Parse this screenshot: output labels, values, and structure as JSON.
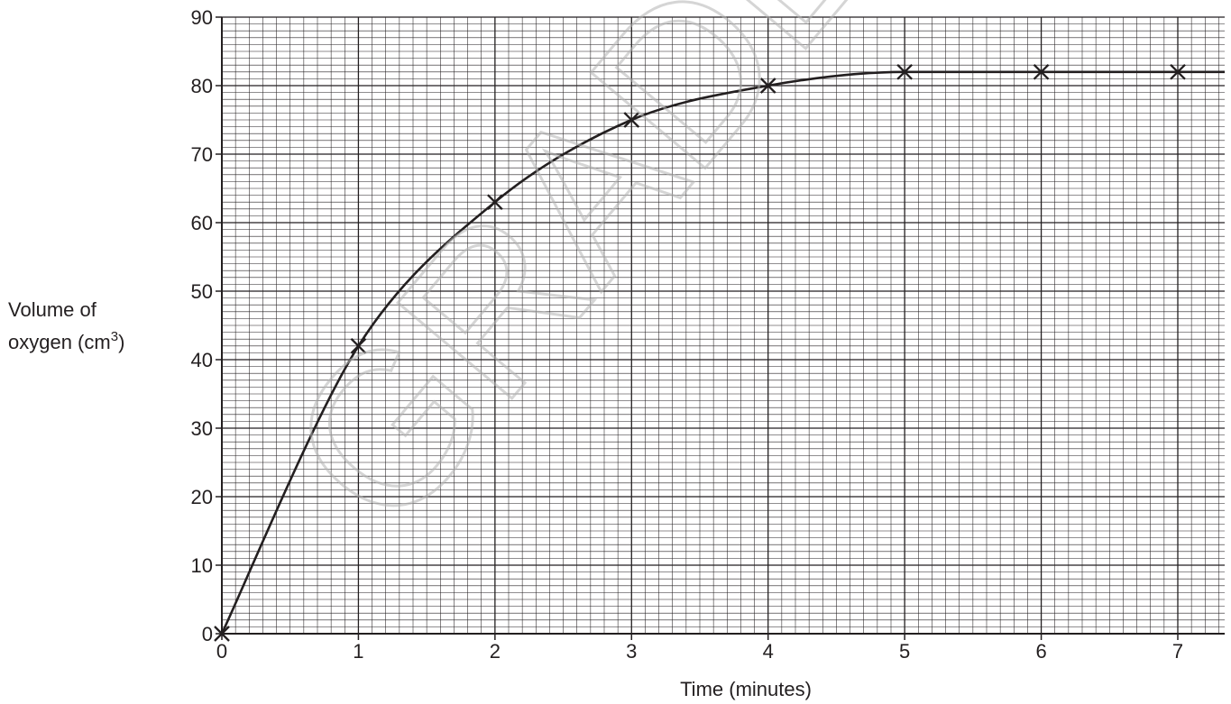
{
  "chart_data": {
    "type": "line",
    "x": [
      0,
      1,
      2,
      3,
      4,
      5,
      6,
      7
    ],
    "series": [
      {
        "values": [
          0,
          42,
          63,
          75,
          80,
          82,
          82,
          82
        ]
      }
    ],
    "curve_after_last_point": 82,
    "xlabel": "Time (minutes)",
    "ylabel_line1": "Volume of",
    "ylabel_line2": "oxygen (cm",
    "ylabel_superscript": "3",
    "ylabel_line2_end": ")",
    "xlim": [
      0,
      7.3
    ],
    "ylim": [
      0,
      90
    ],
    "x_ticks": [
      0,
      1,
      2,
      3,
      4,
      5,
      6,
      7
    ],
    "y_ticks": [
      0,
      10,
      20,
      30,
      40,
      50,
      60,
      70,
      80,
      90
    ],
    "grid": true,
    "minor_grid_divisions": 10,
    "marker": "cross",
    "line_color": "#231f20",
    "grid_color": "#231f20"
  },
  "watermark": "GRADEUP.UK"
}
